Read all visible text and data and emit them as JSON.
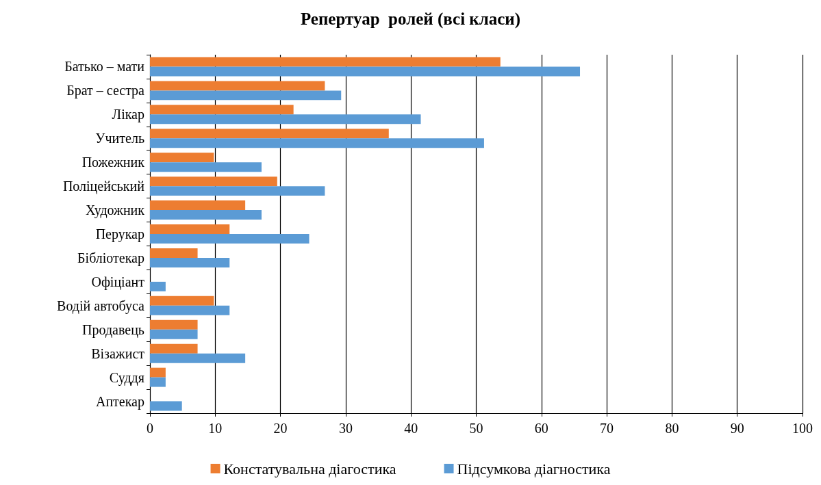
{
  "chart_data": {
    "type": "bar",
    "orientation": "horizontal",
    "title": "Репертуар  ролей (всі класи)",
    "categories": [
      "Батько – мати",
      "Брат – сестра",
      "Лікар",
      "Учитель",
      "Пожежник",
      "Поліцейський",
      "Художник",
      "Перукар",
      "Бібліотекар",
      "Офіціант",
      "Водій автобуса",
      "Продавець",
      "Візажист",
      "Суддя",
      "Аптекар"
    ],
    "series": [
      {
        "name": "Констатувальна діагостика",
        "color": "#ed7d31",
        "values": [
          53.7,
          26.8,
          22.0,
          36.6,
          9.8,
          19.5,
          14.6,
          12.2,
          7.3,
          0,
          9.8,
          7.3,
          7.3,
          2.4,
          0
        ]
      },
      {
        "name": "Підсумкова діагностика",
        "color": "#5b9bd5",
        "values": [
          65.9,
          29.3,
          41.5,
          51.2,
          17.1,
          26.8,
          17.1,
          24.4,
          12.2,
          2.4,
          12.2,
          7.3,
          14.6,
          2.4,
          4.9
        ]
      }
    ],
    "xlim": [
      0,
      100
    ],
    "xticks": [
      0,
      10,
      20,
      30,
      40,
      50,
      60,
      70,
      80,
      90,
      100
    ],
    "grid": "x",
    "legend": "bottom"
  }
}
